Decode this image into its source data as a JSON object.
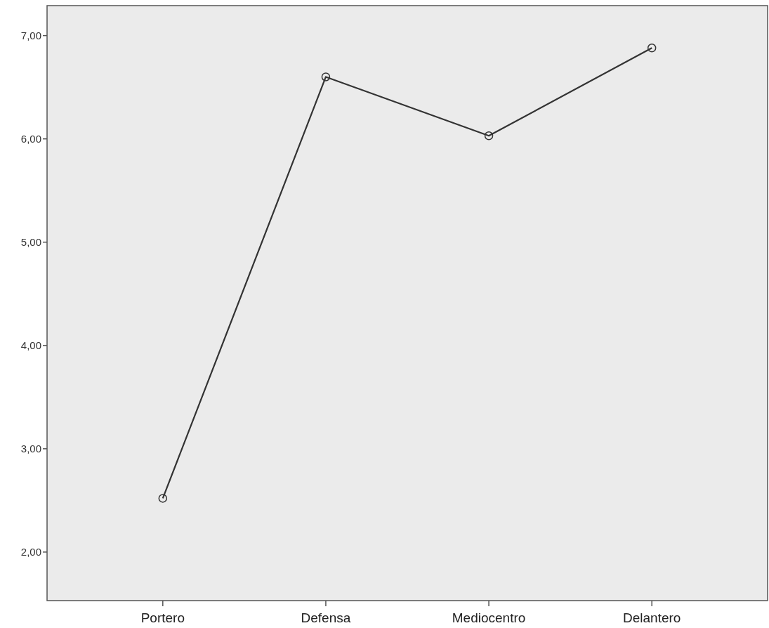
{
  "chart_data": {
    "type": "line",
    "categories": [
      "Portero",
      "Defensa",
      "Mediocentro",
      "Delantero"
    ],
    "series": [
      {
        "color": "#333333",
        "values": [
          2.52,
          6.6,
          6.03,
          6.88
        ]
      }
    ],
    "ylim": [
      1.53,
      7.29
    ],
    "yticks": [
      {
        "value": 2,
        "label": "2,00"
      },
      {
        "value": 3,
        "label": "3,00"
      },
      {
        "value": 4,
        "label": "4,00"
      },
      {
        "value": 5,
        "label": "5,00"
      },
      {
        "value": 6,
        "label": "6,00"
      },
      {
        "value": 7,
        "label": "7,00"
      }
    ],
    "marker": "circle",
    "line_style": "solid"
  }
}
